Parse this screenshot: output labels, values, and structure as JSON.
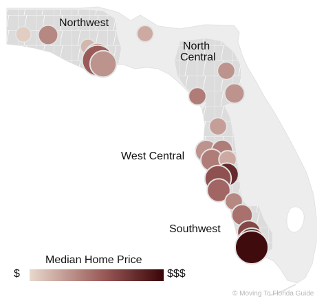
{
  "regions": [
    {
      "id": "northwest",
      "label": "Northwest"
    },
    {
      "id": "north-central",
      "label": "North Central"
    },
    {
      "id": "west-central",
      "label": "West Central"
    },
    {
      "id": "southwest",
      "label": "Southwest"
    }
  ],
  "legend": {
    "title": "Median Home Price",
    "min_label": "$",
    "max_label": "$$$",
    "color_low": "#e8d8cc",
    "color_high": "#3a0508"
  },
  "credit": "© Moving To Florida Guide",
  "colors": {
    "land_base": "#ededed",
    "land_highlight": "#dcdcdc",
    "county_lines": "#ffffff",
    "coast": "#e2e2e2",
    "marker_stroke": "#e3e3e3"
  },
  "markers": [
    {
      "level": 0.05,
      "size": 0.2
    },
    {
      "level": 0.35,
      "size": 0.4
    },
    {
      "level": 0.15,
      "size": 0.2
    },
    {
      "level": 0.35,
      "size": 0.7
    },
    {
      "level": 0.55,
      "size": 0.9
    },
    {
      "level": 0.3,
      "size": 0.7
    },
    {
      "level": 0.2,
      "size": 0.25
    },
    {
      "level": 0.3,
      "size": 0.3
    },
    {
      "level": 0.3,
      "size": 0.4
    },
    {
      "level": 0.4,
      "size": 0.3
    },
    {
      "level": 0.25,
      "size": 0.3
    },
    {
      "level": 0.3,
      "size": 0.5
    },
    {
      "level": 0.4,
      "size": 0.45
    },
    {
      "level": 0.4,
      "size": 0.5
    },
    {
      "level": 0.2,
      "size": 0.3
    },
    {
      "level": 0.8,
      "size": 0.55
    },
    {
      "level": 0.6,
      "size": 0.7
    },
    {
      "level": 0.5,
      "size": 0.55
    },
    {
      "level": 0.35,
      "size": 0.3
    },
    {
      "level": 0.45,
      "size": 0.45
    },
    {
      "level": 0.65,
      "size": 0.55
    },
    {
      "level": 0.75,
      "size": 0.75
    },
    {
      "level": 0.97,
      "size": 1.0
    }
  ]
}
